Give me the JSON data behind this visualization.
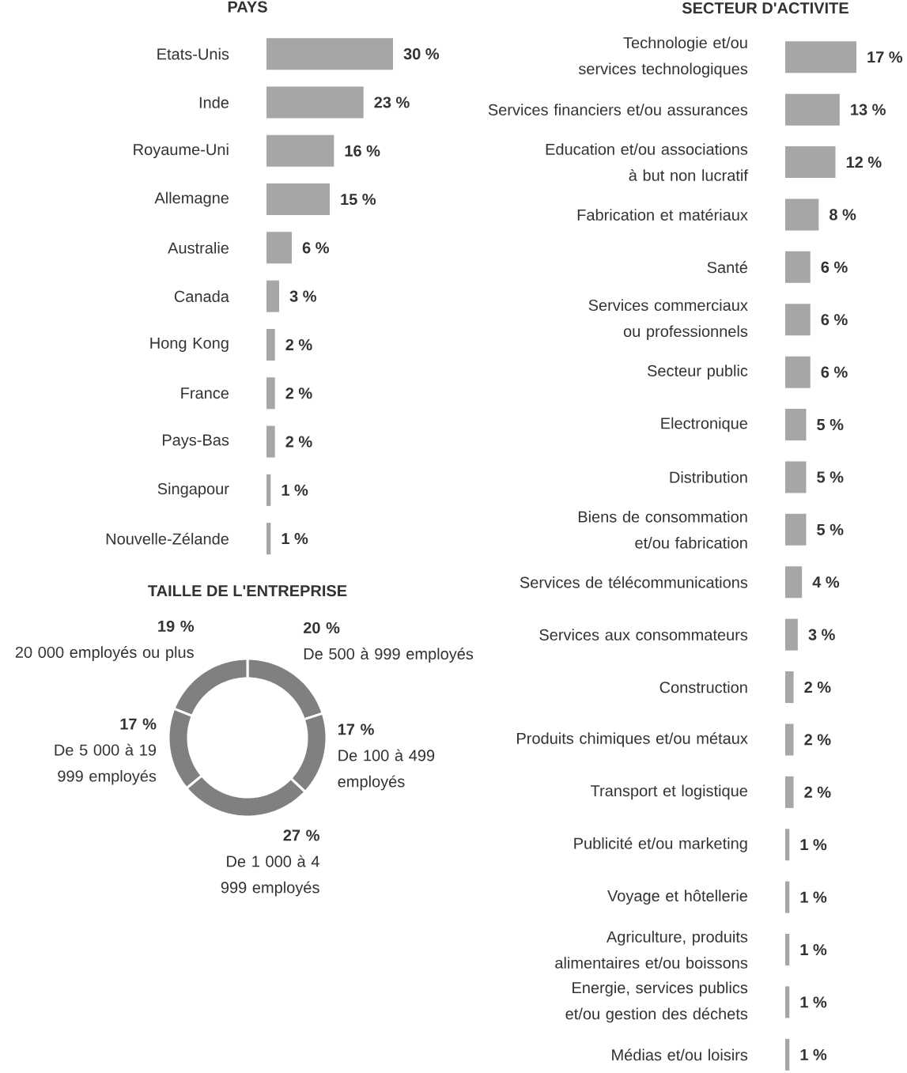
{
  "chart_data": [
    {
      "type": "bar",
      "orientation": "horizontal",
      "title": "PAYS",
      "color": "#a6a6a6",
      "categories": [
        "Etats-Unis",
        "Inde",
        "Royaume-Uni",
        "Allemagne",
        "Australie",
        "Canada",
        "Hong Kong",
        "France",
        "Pays-Bas",
        "Singapour",
        "Nouvelle-Zélande"
      ],
      "values": [
        30,
        23,
        16,
        15,
        6,
        3,
        2,
        2,
        2,
        1,
        1
      ],
      "value_labels": [
        "30 %",
        "23 %",
        "16 %",
        "15 %",
        "6 %",
        "3 %",
        "2 %",
        "2 %",
        "2 %",
        "1 %",
        "1 %"
      ]
    },
    {
      "type": "bar",
      "orientation": "horizontal",
      "title": "SECTEUR D'ACTIVITE",
      "color": "#a6a6a6",
      "categories": [
        "Technologie et/ou services technologiques",
        "Services financiers et/ou assurances",
        "Education et/ou associations à but non lucratif",
        "Fabrication et matériaux",
        "Santé",
        "Services commerciaux ou professionnels",
        "Secteur public",
        "Electronique",
        "Distribution",
        "Biens de consommation et/ou fabrication",
        "Services de télécommunications",
        "Services aux consommateurs",
        "Construction",
        "Produits chimiques et/ou métaux",
        "Transport et logistique",
        "Publicité et/ou marketing",
        "Voyage et hôtellerie",
        "Agriculture, produits alimentaires et/ou boissons",
        "Energie, services publics et/ou gestion des déchets",
        "Médias et/ou loisirs"
      ],
      "values": [
        17,
        13,
        12,
        8,
        6,
        6,
        6,
        5,
        5,
        5,
        4,
        3,
        2,
        2,
        2,
        1,
        1,
        1,
        1,
        1
      ],
      "value_labels": [
        "17 %",
        "13 %",
        "12 %",
        "8 %",
        "6 %",
        "6 %",
        "6 %",
        "5 %",
        "5 %",
        "5 %",
        "4 %",
        "3 %",
        "2 %",
        "2 %",
        "2 %",
        "1 %",
        "1 %",
        "1 %",
        "1 %",
        "1 %"
      ]
    },
    {
      "type": "donut",
      "title": "TAILLE DE L'ENTREPRISE",
      "categories": [
        "De 500 à 999 employés",
        "De 100 à 499 employés",
        "De 1 000 à 4 999 employés",
        "De 5 000 à 19 999 employés",
        "20 000 employés ou plus"
      ],
      "values": [
        20,
        17,
        27,
        17,
        19
      ],
      "colors": [
        "#808080",
        "#808080",
        "#808080",
        "#808080",
        "#808080"
      ],
      "value_labels": [
        "20 %",
        "17 %",
        "27 %",
        "17 %",
        "19 %"
      ]
    }
  ]
}
